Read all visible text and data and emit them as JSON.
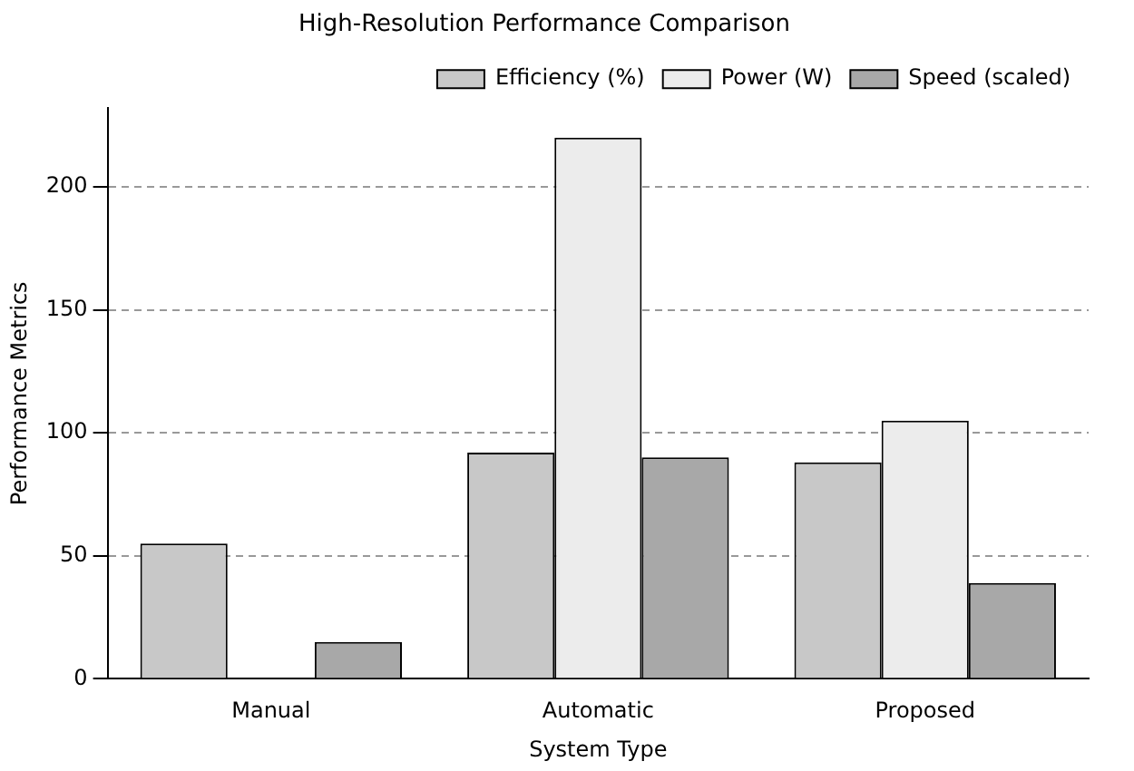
{
  "chart_data": {
    "type": "bar",
    "title": "High-Resolution Performance Comparison",
    "xlabel": "System Type",
    "ylabel": "Performance Metrics",
    "categories": [
      "Manual",
      "Automatic",
      "Proposed"
    ],
    "series": [
      {
        "name": "Efficiency (%)",
        "color": "#c8c8c8",
        "values": [
          55,
          92,
          88
        ]
      },
      {
        "name": "Power (W)",
        "color": "#ececec",
        "values": [
          0,
          220,
          105
        ]
      },
      {
        "name": "Speed (scaled)",
        "color": "#a8a8a8",
        "values": [
          15,
          90,
          39
        ]
      }
    ],
    "ylim": [
      0,
      232
    ],
    "yticks": [
      0,
      50,
      100,
      150,
      200
    ],
    "grid": "y",
    "legend": "top right"
  }
}
